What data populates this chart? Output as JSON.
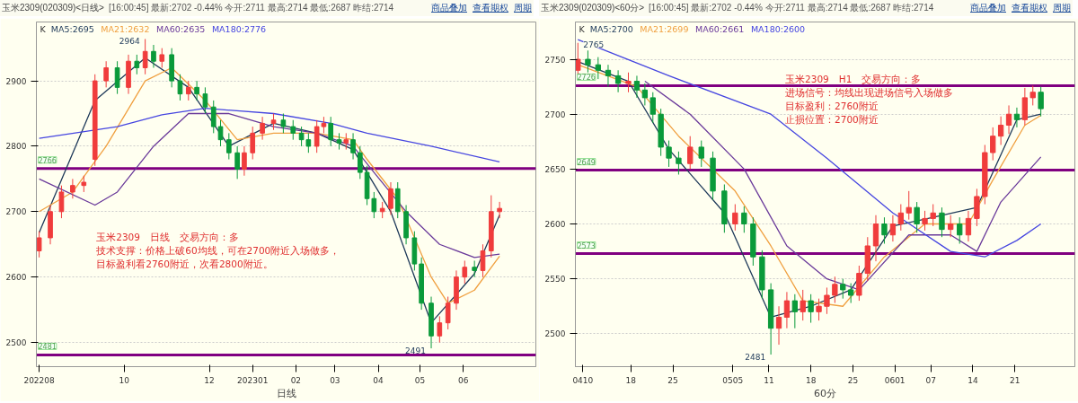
{
  "chart_data": [
    {
      "type": "candlestick",
      "title": "玉米2309(020309)<日线>",
      "subtitle": "[16:00:45] 最新:2702 -0.44% 今开:2711 最高:2714 最低:2687 昨结:2714",
      "xlabel": "日线",
      "legend": "top left",
      "legend_title": "K",
      "grid": "y",
      "xlim": [
        "2022-07-30",
        "2023-07-23"
      ],
      "ylim": [
        2463,
        2990
      ],
      "yticks": [
        2500,
        2600,
        2700,
        2800,
        2900
      ],
      "xticks": [
        {
          "value": "2022-08-01",
          "label": "202208"
        },
        {
          "value": "2022-10-01",
          "label": "10"
        },
        {
          "value": "2022-12-01",
          "label": "12"
        },
        {
          "value": "2023-01-01",
          "label": "202301"
        },
        {
          "value": "2023-02-01",
          "label": "02"
        },
        {
          "value": "2023-03-01",
          "label": "03"
        },
        {
          "value": "2023-04-01",
          "label": "04"
        },
        {
          "value": "2023-05-01",
          "label": "05"
        },
        {
          "value": "2023-06-01",
          "label": "06"
        }
      ],
      "x": [
        "2022-08-01",
        "2022-08-09",
        "2022-08-17",
        "2022-08-25",
        "2022-09-02",
        "2022-09-10",
        "2022-09-18",
        "2022-09-26",
        "2022-10-04",
        "2022-10-10",
        "2022-10-16",
        "2022-10-22",
        "2022-10-28",
        "2022-11-04",
        "2022-11-10",
        "2022-11-16",
        "2022-11-22",
        "2022-11-28",
        "2022-12-04",
        "2022-12-09",
        "2022-12-15",
        "2022-12-21",
        "2022-12-26",
        "2023-01-01",
        "2023-01-08",
        "2023-01-16",
        "2023-01-23",
        "2023-01-30",
        "2023-02-05",
        "2023-02-10",
        "2023-02-16",
        "2023-02-21",
        "2023-02-26",
        "2023-03-04",
        "2023-03-09",
        "2023-03-14",
        "2023-03-19",
        "2023-03-24",
        "2023-03-29",
        "2023-04-04",
        "2023-04-10",
        "2023-04-15",
        "2023-04-21",
        "2023-04-27",
        "2023-05-02",
        "2023-05-09",
        "2023-05-15",
        "2023-05-21",
        "2023-05-27",
        "2023-06-02",
        "2023-06-09",
        "2023-06-15",
        "2023-06-21",
        "2023-06-27"
      ],
      "ohlc": [
        [
          2640,
          2670,
          2630,
          2660
        ],
        [
          2660,
          2710,
          2650,
          2700
        ],
        [
          2700,
          2740,
          2690,
          2730
        ],
        [
          2730,
          2750,
          2720,
          2740
        ],
        [
          2740,
          2755,
          2730,
          2745
        ],
        [
          2780,
          2910,
          2770,
          2900
        ],
        [
          2900,
          2930,
          2890,
          2920
        ],
        [
          2920,
          2930,
          2880,
          2890
        ],
        [
          2890,
          2940,
          2880,
          2930
        ],
        [
          2930,
          2940,
          2910,
          2920
        ],
        [
          2920,
          2964,
          2910,
          2945
        ],
        [
          2945,
          2955,
          2920,
          2930
        ],
        [
          2930,
          2950,
          2920,
          2940
        ],
        [
          2940,
          2950,
          2890,
          2900
        ],
        [
          2900,
          2910,
          2870,
          2880
        ],
        [
          2880,
          2900,
          2870,
          2890
        ],
        [
          2890,
          2900,
          2870,
          2880
        ],
        [
          2880,
          2890,
          2850,
          2860
        ],
        [
          2860,
          2870,
          2820,
          2830
        ],
        [
          2830,
          2840,
          2800,
          2810
        ],
        [
          2810,
          2820,
          2780,
          2790
        ],
        [
          2790,
          2800,
          2750,
          2765
        ],
        [
          2765,
          2800,
          2755,
          2790
        ],
        [
          2790,
          2830,
          2780,
          2820
        ],
        [
          2820,
          2845,
          2810,
          2835
        ],
        [
          2835,
          2850,
          2825,
          2840
        ],
        [
          2840,
          2850,
          2820,
          2830
        ],
        [
          2830,
          2840,
          2810,
          2820
        ],
        [
          2820,
          2830,
          2800,
          2810
        ],
        [
          2810,
          2820,
          2790,
          2800
        ],
        [
          2800,
          2840,
          2790,
          2830
        ],
        [
          2830,
          2845,
          2820,
          2835
        ],
        [
          2835,
          2845,
          2800,
          2810
        ],
        [
          2810,
          2820,
          2795,
          2805
        ],
        [
          2805,
          2820,
          2795,
          2810
        ],
        [
          2810,
          2820,
          2780,
          2790
        ],
        [
          2790,
          2800,
          2750,
          2760
        ],
        [
          2760,
          2770,
          2710,
          2720
        ],
        [
          2720,
          2730,
          2690,
          2700
        ],
        [
          2700,
          2715,
          2690,
          2705
        ],
        [
          2705,
          2745,
          2695,
          2735
        ],
        [
          2735,
          2745,
          2690,
          2700
        ],
        [
          2700,
          2710,
          2650,
          2660
        ],
        [
          2660,
          2670,
          2610,
          2620
        ],
        [
          2620,
          2630,
          2550,
          2560
        ],
        [
          2560,
          2570,
          2491,
          2510
        ],
        [
          2510,
          2540,
          2500,
          2530
        ],
        [
          2530,
          2570,
          2520,
          2560
        ],
        [
          2560,
          2610,
          2550,
          2600
        ],
        [
          2600,
          2625,
          2590,
          2615
        ],
        [
          2615,
          2625,
          2600,
          2610
        ],
        [
          2610,
          2650,
          2600,
          2640
        ],
        [
          2640,
          2725,
          2630,
          2700
        ],
        [
          2700,
          2715,
          2690,
          2705
        ]
      ],
      "colors": [
        "#f03c3c",
        "#f03c3c",
        "#f03c3c",
        "#f03c3c",
        "#f03c3c",
        "#f03c3c",
        "#f03c3c",
        "#0a9a3a",
        "#f03c3c",
        "#0a9a3a",
        "#f03c3c",
        "#0a9a3a",
        "#f03c3c",
        "#0a9a3a",
        "#0a9a3a",
        "#f03c3c",
        "#0a9a3a",
        "#0a9a3a",
        "#0a9a3a",
        "#0a9a3a",
        "#0a9a3a",
        "#0a9a3a",
        "#f03c3c",
        "#f03c3c",
        "#f03c3c",
        "#f03c3c",
        "#0a9a3a",
        "#0a9a3a",
        "#0a9a3a",
        "#0a9a3a",
        "#f03c3c",
        "#f03c3c",
        "#0a9a3a",
        "#0a9a3a",
        "#f03c3c",
        "#0a9a3a",
        "#0a9a3a",
        "#0a9a3a",
        "#0a9a3a",
        "#f03c3c",
        "#f03c3c",
        "#0a9a3a",
        "#0a9a3a",
        "#0a9a3a",
        "#0a9a3a",
        "#0a9a3a",
        "#f03c3c",
        "#f03c3c",
        "#f03c3c",
        "#f03c3c",
        "#0a9a3a",
        "#f03c3c",
        "#f03c3c",
        "#f03c3c"
      ],
      "series": [
        {
          "name": "MA5:2695",
          "type": "line",
          "color": "#1f3a5a",
          "x": [
            "2022-08-01",
            "2022-09-10",
            "2022-10-16",
            "2022-11-16",
            "2022-12-15",
            "2023-01-16",
            "2023-02-16",
            "2023-03-14",
            "2023-04-10",
            "2023-05-09",
            "2023-06-09",
            "2023-06-27"
          ],
          "values": [
            2668,
            2870,
            2935,
            2890,
            2800,
            2835,
            2820,
            2795,
            2700,
            2530,
            2605,
            2695
          ]
        },
        {
          "name": "MA21:2632",
          "type": "line",
          "color": "#f0a040",
          "x": [
            "2022-08-01",
            "2022-08-25",
            "2022-09-18",
            "2022-10-16",
            "2022-11-04",
            "2022-11-28",
            "2022-12-21",
            "2023-01-16",
            "2023-02-16",
            "2023-03-14",
            "2023-03-24",
            "2023-04-15",
            "2023-05-09",
            "2023-05-21",
            "2023-06-09",
            "2023-06-27"
          ],
          "values": [
            2700,
            2730,
            2800,
            2900,
            2920,
            2870,
            2810,
            2820,
            2820,
            2810,
            2780,
            2720,
            2600,
            2560,
            2580,
            2632
          ]
        },
        {
          "name": "MA60:2635",
          "type": "line",
          "color": "#6a3a9a",
          "x": [
            "2022-08-01",
            "2022-09-10",
            "2022-09-26",
            "2022-10-22",
            "2022-11-16",
            "2022-12-15",
            "2023-01-16",
            "2023-02-16",
            "2023-03-14",
            "2023-03-29",
            "2023-04-21",
            "2023-05-15",
            "2023-06-09",
            "2023-06-27"
          ],
          "values": [
            2750,
            2710,
            2730,
            2800,
            2850,
            2850,
            2830,
            2820,
            2800,
            2760,
            2700,
            2650,
            2630,
            2635
          ]
        },
        {
          "name": "MA180:2776",
          "type": "line",
          "color": "#4646e0",
          "x": [
            "2022-08-01",
            "2022-09-26",
            "2022-10-28",
            "2022-11-28",
            "2023-01-16",
            "2023-02-26",
            "2023-03-24",
            "2023-05-09",
            "2023-06-27"
          ],
          "values": [
            2812,
            2830,
            2848,
            2858,
            2850,
            2835,
            2820,
            2800,
            2776
          ]
        }
      ],
      "ref_lines": [
        {
          "axis": "y",
          "value": 2766,
          "label": "2766",
          "color": "#800080"
        },
        {
          "axis": "y",
          "value": 2481,
          "label": "2481",
          "color": "#800080"
        }
      ],
      "annotations": [
        {
          "text": "2964",
          "x": "2022-10-16",
          "y": 2964
        },
        {
          "text": "2491",
          "x": "2023-05-09",
          "y": 2491
        },
        "玉米2309　日线　交易方向：多",
        "技术支撑：价格上破60均线，可在2700附近入场做多，",
        "目标盈利看2760附近，次看2800附近。",
        "商品叠加",
        "查看期权",
        "周期"
      ]
    },
    {
      "type": "candlestick",
      "title": "玉米2309(020309)<60分>",
      "subtitle": "[16:00:45] 最新:2702 -0.44% 今开:2711 最高:2714 最低:2687 昨结:2714",
      "xlabel": "60分",
      "legend": "top left",
      "legend_title": "K",
      "grid": "y",
      "xlim": [
        "2023-04-08T18:00",
        "2023-07-01T00:00"
      ],
      "ylim": [
        2470,
        2784
      ],
      "yticks": [
        2500,
        2550,
        2600,
        2650,
        2700,
        2750
      ],
      "xticks": [
        {
          "value": "2023-04-10",
          "label": "0410"
        },
        {
          "value": "2023-04-18",
          "label": "18"
        },
        {
          "value": "2023-04-25",
          "label": "25"
        },
        {
          "value": "2023-05-05",
          "label": "0505"
        },
        {
          "value": "2023-05-11",
          "label": "11"
        },
        {
          "value": "2023-05-18",
          "label": "18"
        },
        {
          "value": "2023-05-25",
          "label": "25"
        },
        {
          "value": "2023-06-01",
          "label": "0601"
        },
        {
          "value": "2023-06-07",
          "label": "07"
        },
        {
          "value": "2023-06-14",
          "label": "14"
        },
        {
          "value": "2023-06-21",
          "label": "21"
        }
      ],
      "x": [
        "2023-04-09T04:00",
        "2023-04-10T20:00",
        "2023-04-12T13:00",
        "2023-04-14T05:00",
        "2023-04-15T21:00",
        "2023-04-17T14:00",
        "2023-04-19T00:00",
        "2023-04-20T08:00",
        "2023-04-21T16:00",
        "2023-04-23T00:00",
        "2023-04-24T08:00",
        "2023-04-25T23:00",
        "2023-04-27T21:00",
        "2023-04-29T18:00",
        "2023-05-01T16:00",
        "2023-05-03T14:00",
        "2023-05-05T09:00",
        "2023-05-06T21:00",
        "2023-05-08T09:00",
        "2023-05-09T21:00",
        "2023-05-11T08:00",
        "2023-05-12T16:00",
        "2023-05-14T00:00",
        "2023-05-15T08:00",
        "2023-05-16T16:00",
        "2023-05-18T00:00",
        "2023-05-19T08:00",
        "2023-05-20T16:00",
        "2023-05-22T00:00",
        "2023-05-23T08:00",
        "2023-05-24T16:00",
        "2023-05-26T01:00",
        "2023-05-27T11:00",
        "2023-05-28T20:00",
        "2023-05-30T06:00",
        "2023-05-31T16:00",
        "2023-06-02T00:00",
        "2023-06-03T08:00",
        "2023-06-04T16:00",
        "2023-06-06T00:00",
        "2023-06-07T09:00",
        "2023-06-08T20:00",
        "2023-06-10T07:00",
        "2023-06-11T19:00",
        "2023-06-13T06:00",
        "2023-06-14T16:00",
        "2023-06-16T00:00",
        "2023-06-17T08:00",
        "2023-06-18T16:00",
        "2023-06-20T00:00",
        "2023-06-21T08:00",
        "2023-06-22T16:00",
        "2023-06-24T00:00",
        "2023-06-25T08:00"
      ],
      "ohlc": [
        [
          2740,
          2765,
          2735,
          2750
        ],
        [
          2750,
          2758,
          2738,
          2745
        ],
        [
          2745,
          2752,
          2732,
          2740
        ],
        [
          2740,
          2745,
          2725,
          2735
        ],
        [
          2735,
          2740,
          2720,
          2728
        ],
        [
          2728,
          2738,
          2720,
          2730
        ],
        [
          2730,
          2735,
          2715,
          2722
        ],
        [
          2722,
          2728,
          2708,
          2715
        ],
        [
          2715,
          2720,
          2692,
          2700
        ],
        [
          2700,
          2705,
          2662,
          2670
        ],
        [
          2670,
          2676,
          2652,
          2660
        ],
        [
          2660,
          2666,
          2645,
          2655
        ],
        [
          2655,
          2680,
          2650,
          2670
        ],
        [
          2670,
          2676,
          2652,
          2660
        ],
        [
          2660,
          2666,
          2622,
          2630
        ],
        [
          2630,
          2636,
          2592,
          2600
        ],
        [
          2600,
          2618,
          2594,
          2610
        ],
        [
          2610,
          2616,
          2592,
          2600
        ],
        [
          2600,
          2606,
          2562,
          2570
        ],
        [
          2570,
          2576,
          2532,
          2540
        ],
        [
          2540,
          2546,
          2481,
          2505
        ],
        [
          2505,
          2525,
          2490,
          2515
        ],
        [
          2515,
          2538,
          2505,
          2530
        ],
        [
          2530,
          2536,
          2505,
          2520
        ],
        [
          2520,
          2540,
          2512,
          2530
        ],
        [
          2530,
          2536,
          2510,
          2520
        ],
        [
          2520,
          2532,
          2512,
          2525
        ],
        [
          2525,
          2542,
          2518,
          2535
        ],
        [
          2535,
          2552,
          2528,
          2545
        ],
        [
          2545,
          2550,
          2532,
          2540
        ],
        [
          2540,
          2546,
          2528,
          2535
        ],
        [
          2535,
          2562,
          2530,
          2555
        ],
        [
          2555,
          2588,
          2548,
          2580
        ],
        [
          2580,
          2608,
          2566,
          2600
        ],
        [
          2600,
          2606,
          2582,
          2590
        ],
        [
          2590,
          2608,
          2584,
          2600
        ],
        [
          2600,
          2618,
          2594,
          2610
        ],
        [
          2610,
          2630,
          2604,
          2615
        ],
        [
          2615,
          2620,
          2592,
          2600
        ],
        [
          2600,
          2612,
          2594,
          2605
        ],
        [
          2605,
          2618,
          2598,
          2610
        ],
        [
          2610,
          2615,
          2588,
          2595
        ],
        [
          2595,
          2608,
          2588,
          2600
        ],
        [
          2600,
          2606,
          2582,
          2590
        ],
        [
          2590,
          2612,
          2584,
          2605
        ],
        [
          2605,
          2632,
          2598,
          2625
        ],
        [
          2625,
          2672,
          2618,
          2665
        ],
        [
          2665,
          2688,
          2658,
          2680
        ],
        [
          2680,
          2698,
          2672,
          2690
        ],
        [
          2690,
          2708,
          2682,
          2700
        ],
        [
          2700,
          2706,
          2688,
          2695
        ],
        [
          2695,
          2724,
          2690,
          2715
        ],
        [
          2715,
          2726,
          2708,
          2720
        ],
        [
          2720,
          2725,
          2698,
          2705
        ]
      ],
      "colors": [
        "#f03c3c",
        "#0a9a3a",
        "#0a9a3a",
        "#0a9a3a",
        "#0a9a3a",
        "#f03c3c",
        "#0a9a3a",
        "#0a9a3a",
        "#0a9a3a",
        "#0a9a3a",
        "#0a9a3a",
        "#0a9a3a",
        "#f03c3c",
        "#0a9a3a",
        "#0a9a3a",
        "#0a9a3a",
        "#f03c3c",
        "#0a9a3a",
        "#0a9a3a",
        "#0a9a3a",
        "#0a9a3a",
        "#f03c3c",
        "#f03c3c",
        "#0a9a3a",
        "#f03c3c",
        "#0a9a3a",
        "#f03c3c",
        "#f03c3c",
        "#f03c3c",
        "#0a9a3a",
        "#0a9a3a",
        "#f03c3c",
        "#f03c3c",
        "#f03c3c",
        "#0a9a3a",
        "#f03c3c",
        "#f03c3c",
        "#f03c3c",
        "#0a9a3a",
        "#f03c3c",
        "#f03c3c",
        "#0a9a3a",
        "#f03c3c",
        "#0a9a3a",
        "#f03c3c",
        "#f03c3c",
        "#f03c3c",
        "#f03c3c",
        "#f03c3c",
        "#f03c3c",
        "#0a9a3a",
        "#f03c3c",
        "#f03c3c",
        "#0a9a3a"
      ],
      "series": [
        {
          "name": "MA5:2700",
          "type": "line",
          "color": "#1f3a5a",
          "x": [
            "2023-04-09T04:00",
            "2023-04-17T14:00",
            "2023-04-24T08:00",
            "2023-05-03T14:00",
            "2023-05-11T08:00",
            "2023-05-18T00:00",
            "2023-05-24T16:00",
            "2023-05-31T16:00",
            "2023-06-07T09:00",
            "2023-06-14T16:00",
            "2023-06-21T08:00",
            "2023-06-25T08:00"
          ],
          "values": [
            2748,
            2730,
            2668,
            2610,
            2515,
            2525,
            2540,
            2598,
            2606,
            2615,
            2695,
            2700
          ]
        },
        {
          "name": "MA21:2699",
          "type": "line",
          "color": "#f0a040",
          "x": [
            "2023-04-09T04:00",
            "2023-04-19T00:00",
            "2023-04-25T23:00",
            "2023-05-05T09:00",
            "2023-05-11T08:00",
            "2023-05-16T16:00",
            "2023-05-23T08:00",
            "2023-05-30T06:00",
            "2023-06-06T00:00",
            "2023-06-13T06:00",
            "2023-06-17T08:00",
            "2023-06-22T16:00",
            "2023-06-25T08:00"
          ],
          "values": [
            2745,
            2725,
            2680,
            2630,
            2580,
            2530,
            2525,
            2570,
            2600,
            2600,
            2640,
            2690,
            2699
          ]
        },
        {
          "name": "MA60:2661",
          "type": "line",
          "color": "#6a3a9a",
          "x": [
            "2023-04-20T08:00",
            "2023-04-27T21:00",
            "2023-05-06T21:00",
            "2023-05-14T00:00",
            "2023-05-20T16:00",
            "2023-05-26T01:00",
            "2023-06-03T08:00",
            "2023-06-10T07:00",
            "2023-06-14T16:00",
            "2023-06-18T16:00",
            "2023-06-25T08:00"
          ],
          "values": [
            2730,
            2700,
            2650,
            2580,
            2550,
            2540,
            2590,
            2590,
            2575,
            2620,
            2661
          ]
        },
        {
          "name": "MA180:2600",
          "type": "line",
          "color": "#4646e0",
          "x": [
            "2023-04-09T04:00",
            "2023-04-24T08:00",
            "2023-05-11T08:00",
            "2023-05-20T16:00",
            "2023-05-31T16:00",
            "2023-06-10T07:00",
            "2023-06-16T00:00",
            "2023-06-21T08:00",
            "2023-06-25T08:00"
          ],
          "values": [
            2768,
            2735,
            2700,
            2660,
            2610,
            2575,
            2570,
            2585,
            2600
          ]
        }
      ],
      "ref_lines": [
        {
          "axis": "y",
          "value": 2726,
          "label": "2726",
          "color": "#800080"
        },
        {
          "axis": "y",
          "value": 2649,
          "label": "2649",
          "color": "#800080"
        },
        {
          "axis": "y",
          "value": 2573,
          "label": "2573",
          "color": "#800080"
        }
      ],
      "annotations": [
        {
          "text": "2765",
          "x": "2023-04-09T04:00",
          "y": 2765
        },
        {
          "text": "2481",
          "x": "2023-05-11T08:00",
          "y": 2481
        },
        "玉米2309　H1　交易方向：多",
        "进场信号：均线出现进场信号入场做多",
        "目标盈利：2760附近",
        "止损位置：2700附近",
        "商品叠加",
        "查看期权",
        "周期"
      ]
    }
  ]
}
